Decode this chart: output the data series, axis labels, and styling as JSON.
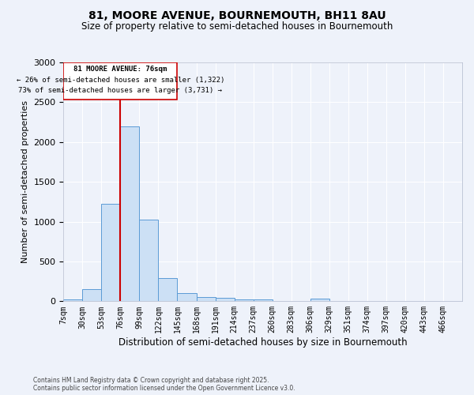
{
  "title": "81, MOORE AVENUE, BOURNEMOUTH, BH11 8AU",
  "subtitle": "Size of property relative to semi-detached houses in Bournemouth",
  "xlabel": "Distribution of semi-detached houses by size in Bournemouth",
  "ylabel": "Number of semi-detached properties",
  "bar_labels": [
    "7sqm",
    "30sqm",
    "53sqm",
    "76sqm",
    "99sqm",
    "122sqm",
    "145sqm",
    "168sqm",
    "191sqm",
    "214sqm",
    "237sqm",
    "260sqm",
    "283sqm",
    "306sqm",
    "329sqm",
    "351sqm",
    "374sqm",
    "397sqm",
    "420sqm",
    "443sqm",
    "466sqm"
  ],
  "bar_values": [
    20,
    150,
    1220,
    2200,
    1030,
    290,
    105,
    55,
    45,
    25,
    20,
    0,
    0,
    30,
    0,
    0,
    0,
    0,
    0,
    0,
    0
  ],
  "bin_width": 23,
  "property_line_x": 76,
  "annotation_title": "81 MOORE AVENUE: 76sqm",
  "annotation_line1": "← 26% of semi-detached houses are smaller (1,322)",
  "annotation_line2": "73% of semi-detached houses are larger (3,731) →",
  "bar_color": "#cce0f5",
  "bar_edge_color": "#5b9bd5",
  "line_color": "#cc0000",
  "background_color": "#eef2fa",
  "grid_color": "#ffffff",
  "ylim": [
    0,
    3000
  ],
  "yticks": [
    0,
    500,
    1000,
    1500,
    2000,
    2500,
    3000
  ],
  "footnote1": "Contains HM Land Registry data © Crown copyright and database right 2025.",
  "footnote2": "Contains public sector information licensed under the Open Government Licence v3.0."
}
